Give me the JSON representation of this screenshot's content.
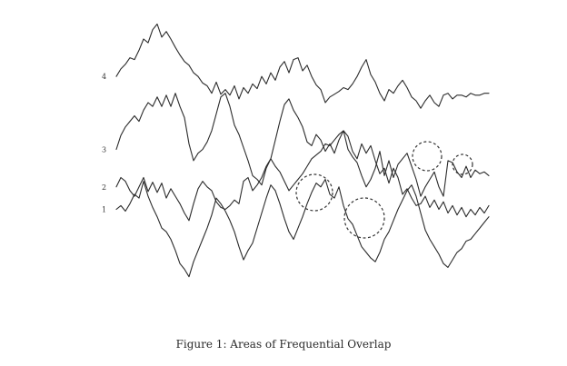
{
  "caption": "Figure 1: Areas of Frequential Overlap",
  "chart_data": {
    "type": "line",
    "title": "",
    "xlabel": "",
    "ylabel": "",
    "x": [
      0,
      5,
      10,
      15,
      20,
      25,
      30,
      35,
      40,
      45,
      50,
      55,
      60,
      65,
      70,
      75,
      80,
      85,
      90,
      95,
      100,
      105,
      110,
      115,
      120,
      125,
      130,
      135,
      140,
      145,
      150,
      155,
      160,
      165,
      170,
      175,
      180,
      185,
      190,
      195,
      200,
      205,
      210,
      215,
      220,
      225,
      230,
      235,
      240,
      245,
      250,
      255,
      260,
      265,
      270,
      275,
      280,
      285,
      290,
      295,
      300,
      305,
      310,
      315,
      320,
      325,
      330,
      335,
      340,
      345,
      350,
      355,
      360,
      365,
      370,
      375,
      380,
      385,
      390,
      395,
      400,
      405,
      410
    ],
    "xlim": [
      0,
      410
    ],
    "ylim": [
      0,
      330
    ],
    "grid": false,
    "series": [
      {
        "name": "4",
        "values": [
          258,
          266,
          271,
          278,
          276,
          286,
          298,
          294,
          308,
          314,
          300,
          306,
          298,
          289,
          281,
          274,
          270,
          262,
          258,
          251,
          248,
          240,
          252,
          239,
          244,
          238,
          248,
          234,
          246,
          240,
          250,
          245,
          258,
          250,
          262,
          254,
          268,
          274,
          262,
          276,
          278,
          264,
          270,
          258,
          249,
          244,
          230,
          236,
          239,
          242,
          246,
          244,
          250,
          258,
          268,
          276,
          260,
          252,
          240,
          232,
          244,
          240,
          248,
          254,
          246,
          236,
          232,
          224,
          232,
          238,
          230,
          226,
          238,
          240,
          234,
          238,
          238,
          236,
          240,
          238,
          238,
          240,
          240
        ]
      },
      {
        "name": "3",
        "values": [
          180,
          195,
          204,
          210,
          216,
          210,
          222,
          230,
          226,
          236,
          226,
          238,
          226,
          240,
          226,
          214,
          186,
          168,
          176,
          180,
          188,
          200,
          218,
          236,
          240,
          226,
          206,
          196,
          182,
          168,
          152,
          148,
          142,
          160,
          170,
          190,
          210,
          228,
          234,
          222,
          214,
          204,
          188,
          184,
          196,
          190,
          178,
          186,
          176,
          190,
          200,
          180,
          172,
          166,
          152,
          140,
          148,
          160,
          178,
          152,
          168,
          150,
          164,
          170,
          176,
          162,
          148,
          130,
          140,
          148,
          156,
          140,
          130,
          168,
          166,
          156,
          150,
          162,
          150,
          158,
          154,
          156,
          152
        ]
      },
      {
        "name": "2",
        "values": [
          140,
          150,
          146,
          136,
          130,
          140,
          150,
          135,
          145,
          134,
          144,
          128,
          138,
          130,
          122,
          112,
          104,
          122,
          138,
          146,
          140,
          136,
          124,
          118,
          116,
          120,
          126,
          122,
          146,
          150,
          136,
          142,
          150,
          162,
          170,
          162,
          156,
          146,
          136,
          142,
          148,
          154,
          162,
          170,
          174,
          178,
          186,
          184,
          190,
          196,
          200,
          194,
          178,
          170,
          186,
          176,
          184,
          168,
          154,
          160,
          144,
          160,
          150,
          132,
          138,
          128,
          120,
          122,
          130,
          118,
          126,
          116,
          124,
          112,
          120,
          110,
          118,
          108,
          116,
          110,
          118,
          112,
          120
        ]
      },
      {
        "name": "1",
        "values": [
          116,
          120,
          114,
          122,
          132,
          128,
          146,
          130,
          118,
          108,
          96,
          92,
          84,
          72,
          58,
          52,
          44,
          60,
          72,
          84,
          96,
          110,
          128,
          122,
          114,
          104,
          92,
          76,
          62,
          72,
          80,
          96,
          112,
          128,
          142,
          136,
          122,
          106,
          92,
          84,
          96,
          108,
          122,
          134,
          144,
          140,
          148,
          132,
          128,
          140,
          120,
          106,
          100,
          88,
          76,
          70,
          64,
          60,
          70,
          84,
          92,
          104,
          116,
          126,
          136,
          142,
          130,
          112,
          94,
          84,
          76,
          68,
          58,
          54,
          62,
          70,
          74,
          82,
          84,
          90,
          96,
          102,
          108
        ]
      }
    ],
    "annotations": [
      "overlap-1",
      "overlap-2",
      "overlap-3",
      "overlap-4"
    ]
  }
}
